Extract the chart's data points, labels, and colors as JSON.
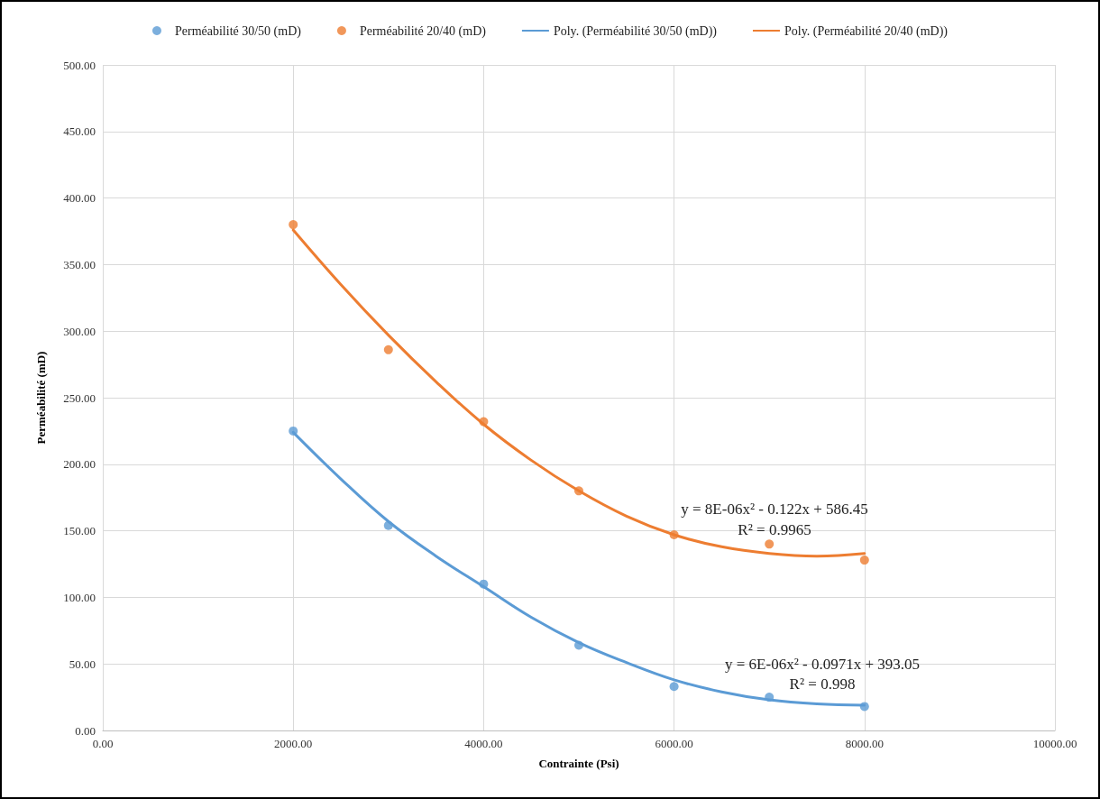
{
  "chart_data": {
    "type": "scatter",
    "xlabel": "Contrainte (Psi)",
    "ylabel": "Perméabilité (mD)",
    "xlim": [
      0,
      10000
    ],
    "ylim": [
      0,
      500
    ],
    "xticks": [
      {
        "value": 0,
        "label": "0.00"
      },
      {
        "value": 2000,
        "label": "2000.00"
      },
      {
        "value": 4000,
        "label": "4000.00"
      },
      {
        "value": 6000,
        "label": "6000.00"
      },
      {
        "value": 8000,
        "label": "8000.00"
      },
      {
        "value": 10000,
        "label": "10000.00"
      }
    ],
    "yticks": [
      {
        "value": 0,
        "label": "0.00"
      },
      {
        "value": 50,
        "label": "50.00"
      },
      {
        "value": 100,
        "label": "100.00"
      },
      {
        "value": 150,
        "label": "150.00"
      },
      {
        "value": 200,
        "label": "200.00"
      },
      {
        "value": 250,
        "label": "250.00"
      },
      {
        "value": 300,
        "label": "300.00"
      },
      {
        "value": 350,
        "label": "350.00"
      },
      {
        "value": 400,
        "label": "400.00"
      },
      {
        "value": 450,
        "label": "450.00"
      },
      {
        "value": 500,
        "label": "500.00"
      }
    ],
    "grid": true,
    "legend": "top",
    "series": [
      {
        "name": "Perméabilité 30/50 (mD)",
        "marker": "circle",
        "color": "#5b9bd5",
        "x": [
          2000,
          3000,
          4000,
          5000,
          6000,
          7000,
          8000
        ],
        "values": [
          225,
          154,
          110,
          64,
          33,
          25,
          18
        ]
      },
      {
        "name": "Perméabilité 20/40 (mD)",
        "marker": "circle",
        "color": "#ed7d31",
        "x": [
          2000,
          3000,
          4000,
          5000,
          6000,
          7000,
          8000
        ],
        "values": [
          380,
          286,
          232,
          180,
          147,
          140,
          128
        ]
      },
      {
        "name": "Poly. (Perméabilité 30/50 (mD))",
        "type": "line",
        "marker": "none",
        "line_style": "solid",
        "color": "#5b9bd5",
        "x": [
          2000,
          2500,
          3000,
          3500,
          4000,
          4500,
          5000,
          5500,
          6000,
          6500,
          7000,
          7500,
          8000
        ],
        "values": [
          224,
          189,
          157,
          131,
          108,
          85,
          66,
          51,
          38,
          29,
          23,
          20,
          19
        ]
      },
      {
        "name": "Poly. (Perméabilité 20/40 (mD))",
        "type": "line",
        "marker": "none",
        "line_style": "solid",
        "color": "#ed7d31",
        "x": [
          2000,
          2500,
          3000,
          3500,
          4000,
          4500,
          5000,
          5500,
          6000,
          6500,
          7000,
          7500,
          8000
        ],
        "values": [
          376,
          335,
          297,
          262,
          230,
          203,
          180,
          161,
          147,
          138,
          133,
          131,
          133
        ]
      }
    ],
    "annotations": [
      "y = 8E-06x² - 0.122x + 586.45",
      "R² = 0.9965",
      "y = 6E-06x² - 0.0971x + 393.05",
      "R² = 0.998"
    ]
  }
}
